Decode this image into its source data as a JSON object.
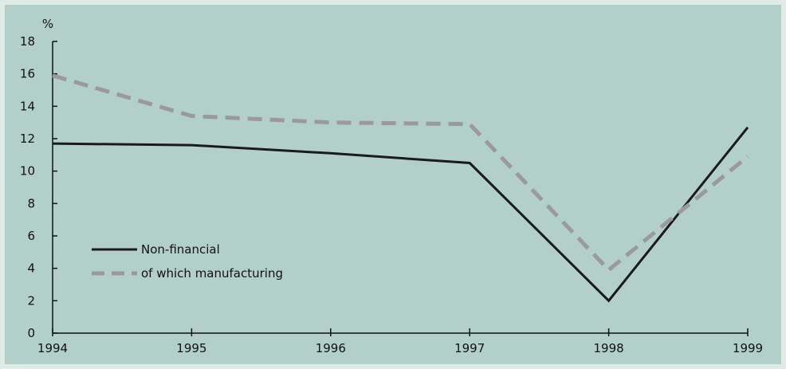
{
  "chart_data": {
    "type": "line",
    "title": "",
    "xlabel": "",
    "ylabel": "%",
    "x": [
      1994,
      1995,
      1996,
      1997,
      1998,
      1999
    ],
    "xlim": [
      1994,
      1999
    ],
    "ylim": [
      0,
      18
    ],
    "y_ticks": [
      0,
      2,
      4,
      6,
      8,
      10,
      12,
      14,
      16,
      18
    ],
    "x_ticks": [
      "1994",
      "1995",
      "1996",
      "1997",
      "1998",
      "1999"
    ],
    "grid": false,
    "legend_position": "lower-left",
    "series": [
      {
        "name": "Non-financial",
        "style": "solid",
        "color": "#1a1a1a",
        "values": [
          11.7,
          11.6,
          11.1,
          10.5,
          2.0,
          12.7
        ]
      },
      {
        "name": "of which manufacturing",
        "style": "dashed",
        "color": "#9a9a9a",
        "values": [
          15.9,
          13.4,
          13.0,
          12.9,
          3.9,
          10.9
        ]
      }
    ]
  },
  "colors": {
    "page_background": "#e0ebe8",
    "plot_background": "#b3cfc9",
    "axis": "#111111"
  }
}
